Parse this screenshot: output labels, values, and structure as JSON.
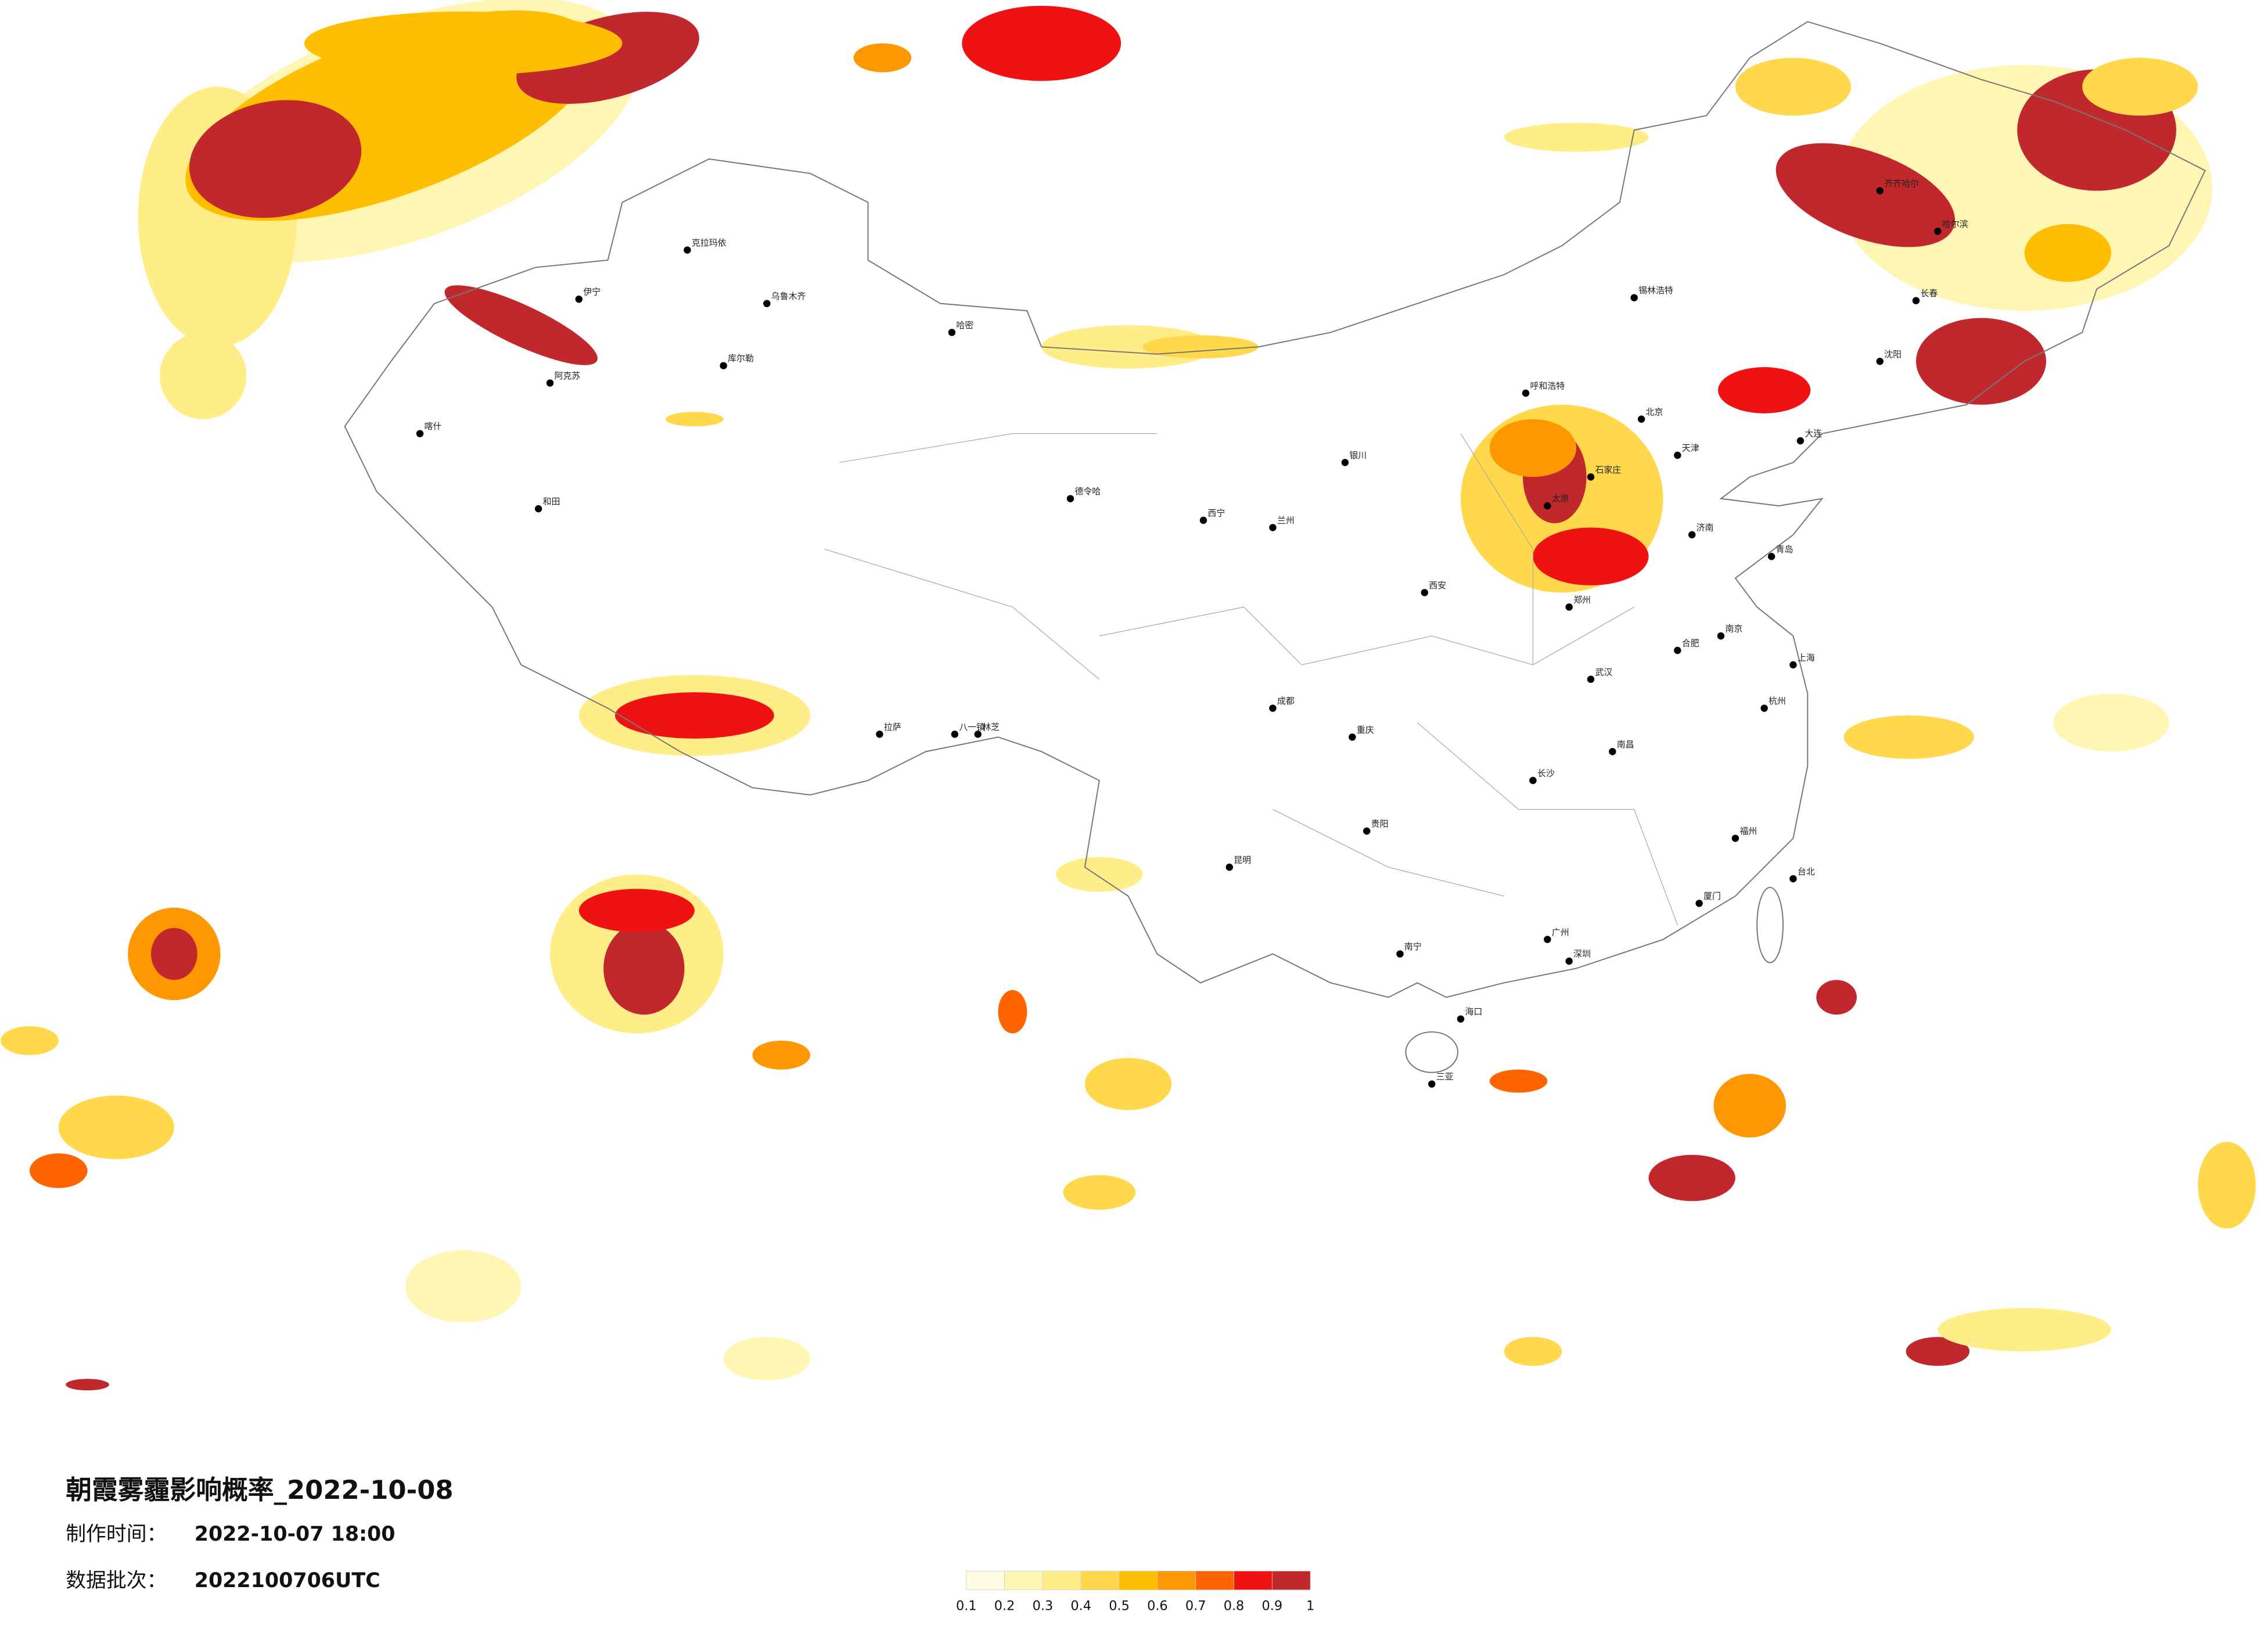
{
  "map": {
    "title": "朝霞雾霾影响概率_2022-10-08",
    "production_time": {
      "label": "制作时间：",
      "value": "2022-10-07 18:00"
    },
    "batch": {
      "label": "数据批次：",
      "value": "2022100706UTC"
    },
    "legend": {
      "ticks": [
        0.1,
        0.2,
        0.3,
        0.4,
        0.5,
        0.6,
        0.7,
        0.8,
        0.9,
        1
      ],
      "colors": [
        "#fffbe2",
        "#fff6b4",
        "#ffee88",
        "#ffd84c",
        "#ffbf00",
        "#ff9800",
        "#ff6400",
        "#f01212",
        "#c0282e"
      ]
    },
    "cities": [
      "北京",
      "天津",
      "石家庄",
      "太原",
      "呼和浩特",
      "沈阳",
      "长春",
      "哈尔滨",
      "齐齐哈尔",
      "济南",
      "郑州",
      "西安",
      "兰州",
      "西宁",
      "银川",
      "乌鲁木齐",
      "拉萨",
      "成都",
      "重庆",
      "武汉",
      "长沙",
      "南昌",
      "合肥",
      "南京",
      "上海",
      "杭州",
      "福州",
      "广州",
      "南宁",
      "贵阳",
      "昆明",
      "海口",
      "台北",
      "喀什",
      "和田",
      "克拉玛依",
      "伊宁",
      "阿克苏",
      "库尔勒",
      "哈密",
      "德令哈",
      "大连",
      "青岛",
      "厦门",
      "深圳",
      "三亚",
      "锡林浩特",
      "林芝",
      "八一镇"
    ]
  }
}
